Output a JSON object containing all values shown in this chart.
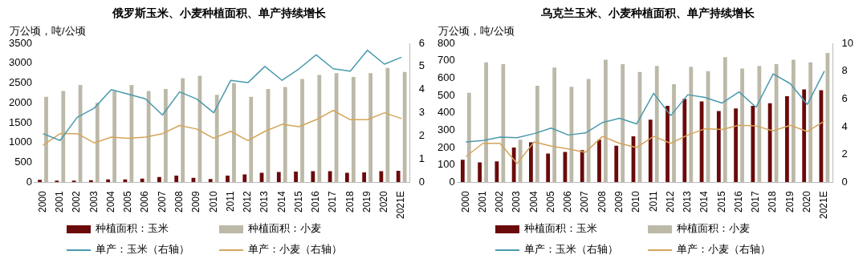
{
  "chart_data": [
    {
      "type": "bar",
      "title": "俄罗斯玉米、小麦种植面积、单产持续增长",
      "ylabel": "万公顷，吨/公顷",
      "categories": [
        "2000",
        "2001",
        "2002",
        "2003",
        "2004",
        "2005",
        "2006",
        "2007",
        "2008",
        "2009",
        "2010",
        "2011",
        "2012",
        "2013",
        "2014",
        "2015",
        "2016",
        "2017",
        "2018",
        "2019",
        "2020",
        "2021E"
      ],
      "series": [
        {
          "name": "种植面积：玉米",
          "color": "#6b0a0a",
          "values": [
            60,
            40,
            40,
            50,
            70,
            70,
            90,
            130,
            170,
            110,
            80,
            170,
            200,
            240,
            260,
            270,
            280,
            280,
            240,
            250,
            280,
            290
          ]
        },
        {
          "name": "种植面积：小麦",
          "color": "#bcb9a8",
          "values": [
            2150,
            2300,
            2450,
            2000,
            2300,
            2450,
            2300,
            2350,
            2620,
            2680,
            2200,
            2500,
            2150,
            2350,
            2400,
            2600,
            2700,
            2750,
            2650,
            2750,
            2880,
            2780
          ]
        },
        {
          "name": "单产：玉米（右轴）",
          "type": "line",
          "axis": "y2",
          "color": "#4a9aad",
          "values": [
            2.1,
            1.8,
            2.8,
            3.2,
            4.0,
            3.8,
            3.6,
            2.9,
            3.9,
            3.6,
            3.0,
            4.4,
            4.3,
            5.0,
            4.4,
            4.9,
            5.5,
            4.9,
            4.8,
            5.7,
            5.1,
            5.4
          ]
        },
        {
          "name": "单产：小麦（右轴）",
          "type": "line",
          "axis": "y2",
          "color": "#d4a55a",
          "values": [
            1.6,
            2.1,
            2.1,
            1.7,
            1.95,
            1.9,
            1.95,
            2.1,
            2.45,
            2.3,
            1.9,
            2.2,
            1.8,
            2.2,
            2.5,
            2.4,
            2.7,
            3.1,
            2.7,
            2.7,
            3.0,
            2.75
          ]
        }
      ],
      "ylim": [
        0,
        3500
      ],
      "yticks": [
        0,
        500,
        1000,
        1500,
        2000,
        2500,
        3000,
        3500
      ],
      "y2lim": [
        0,
        6
      ],
      "y2ticks": [
        0,
        1,
        2,
        3,
        4,
        5,
        6
      ],
      "grid": false,
      "legend": "bottom",
      "marker": "none"
    },
    {
      "type": "bar",
      "title": "乌克兰玉米、小麦种植面积、单产持续增长",
      "ylabel": "万公顷，吨/公顷",
      "categories": [
        "2000",
        "2001",
        "2002",
        "2003",
        "2004",
        "2005",
        "2006",
        "2007",
        "2008",
        "2009",
        "2010",
        "2011",
        "2012",
        "2013",
        "2014",
        "2015",
        "2016",
        "2017",
        "2018",
        "2019",
        "2020",
        "2021E"
      ],
      "series": [
        {
          "name": "种植面积：玉米",
          "color": "#6b0a0a",
          "values": [
            130,
            115,
            120,
            200,
            230,
            165,
            175,
            185,
            245,
            210,
            265,
            360,
            440,
            480,
            465,
            410,
            425,
            440,
            455,
            495,
            535,
            530
          ]
        },
        {
          "name": "种植面积：小麦",
          "color": "#bcb9a8",
          "values": [
            515,
            690,
            680,
            245,
            555,
            660,
            550,
            595,
            705,
            680,
            635,
            670,
            565,
            665,
            640,
            720,
            655,
            670,
            680,
            705,
            690,
            745
          ]
        },
        {
          "name": "单产：玉米（右轴）",
          "type": "line",
          "axis": "y2",
          "color": "#4a9aad",
          "values": [
            2.9,
            3.0,
            3.25,
            3.2,
            3.5,
            3.9,
            3.4,
            3.55,
            4.3,
            4.6,
            4.2,
            6.4,
            4.8,
            6.3,
            6.1,
            5.7,
            6.5,
            5.4,
            7.8,
            7.1,
            5.6,
            8.0
          ]
        },
        {
          "name": "单产：小麦（右轴）",
          "type": "line",
          "axis": "y2",
          "color": "#d4a55a",
          "values": [
            1.85,
            2.8,
            2.8,
            1.35,
            2.9,
            2.6,
            2.4,
            2.15,
            3.3,
            2.8,
            2.5,
            3.3,
            2.8,
            3.4,
            3.85,
            3.8,
            4.1,
            4.05,
            3.7,
            4.1,
            3.65,
            4.4
          ]
        }
      ],
      "ylim": [
        0,
        800
      ],
      "yticks": [
        0,
        100,
        200,
        300,
        400,
        500,
        600,
        700,
        800
      ],
      "y2lim": [
        0,
        10
      ],
      "y2ticks": [
        0,
        2,
        4,
        6,
        8,
        10
      ],
      "grid": false,
      "legend": "bottom",
      "marker": "none"
    }
  ]
}
